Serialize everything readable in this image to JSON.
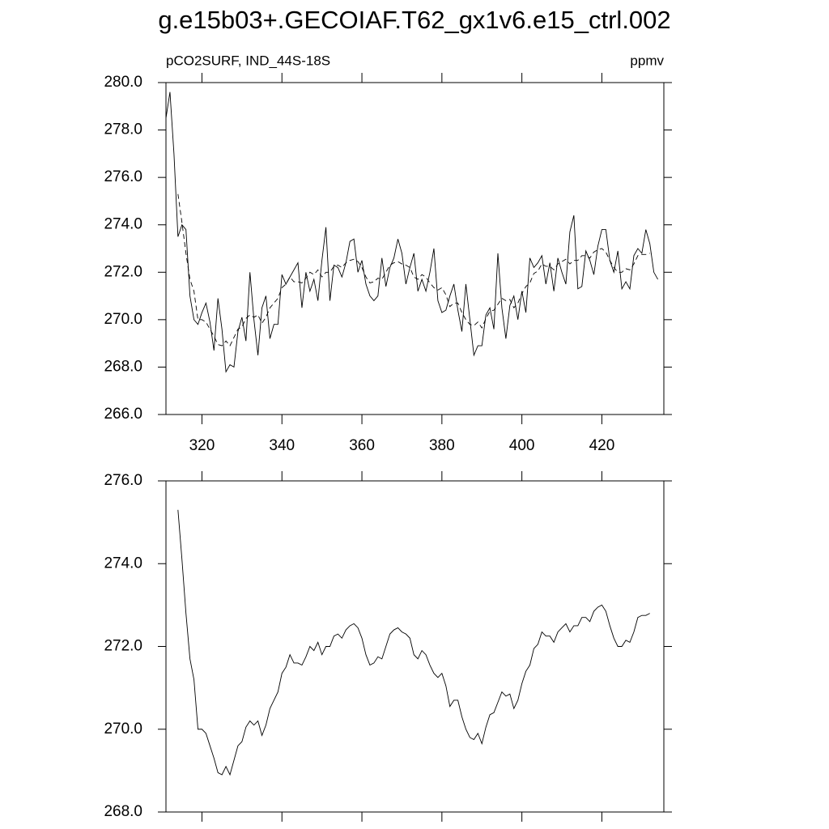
{
  "chart_data": [
    {
      "type": "line",
      "title": "g.e15b03+.GECOIAF.T62_gx1v6.e15_ctrl.002",
      "subtitle_left": "pCO2SURF, IND_44S-18S",
      "subtitle_right": "ppmv",
      "x": [
        311,
        312,
        313,
        314,
        315,
        316,
        317,
        318,
        319,
        320,
        321,
        322,
        323,
        324,
        325,
        326,
        327,
        328,
        329,
        330,
        331,
        332,
        333,
        334,
        335,
        336,
        337,
        338,
        339,
        340,
        341,
        342,
        343,
        344,
        345,
        346,
        347,
        348,
        349,
        350,
        351,
        352,
        353,
        354,
        355,
        356,
        357,
        358,
        359,
        360,
        361,
        362,
        363,
        364,
        365,
        366,
        367,
        368,
        369,
        370,
        371,
        372,
        373,
        374,
        375,
        376,
        377,
        378,
        379,
        380,
        381,
        382,
        383,
        384,
        385,
        386,
        387,
        388,
        389,
        390,
        391,
        392,
        393,
        394,
        395,
        396,
        397,
        398,
        399,
        400,
        401,
        402,
        403,
        404,
        405,
        406,
        407,
        408,
        409,
        410,
        411,
        412,
        413,
        414,
        415,
        416,
        417,
        418,
        419,
        420,
        421,
        422,
        423,
        424,
        425,
        426,
        427,
        428,
        429,
        430,
        431,
        432,
        433,
        434
      ],
      "series": [
        {
          "color": "#000000",
          "dash": false,
          "values": [
            278.5,
            279.6,
            277.0,
            273.5,
            274.0,
            273.8,
            271.0,
            270.0,
            269.8,
            270.3,
            270.7,
            269.9,
            268.7,
            270.9,
            269.6,
            267.8,
            268.1,
            268.0,
            269.5,
            270.1,
            269.1,
            272.0,
            270.0,
            268.5,
            270.5,
            271.0,
            269.2,
            269.8,
            269.8,
            271.9,
            271.5,
            271.8,
            272.1,
            272.4,
            270.5,
            272.0,
            271.2,
            271.7,
            270.8,
            272.5,
            273.9,
            270.8,
            272.3,
            272.2,
            271.8,
            272.4,
            273.3,
            273.4,
            272.0,
            272.5,
            271.5,
            271.0,
            270.8,
            271.0,
            272.6,
            271.4,
            272.2,
            272.6,
            273.4,
            272.8,
            271.5,
            272.2,
            272.8,
            271.2,
            271.7,
            271.2,
            272.0,
            273.0,
            270.8,
            270.3,
            270.4,
            271.0,
            271.5,
            270.4,
            269.5,
            271.5,
            270.0,
            268.5,
            268.9,
            268.9,
            270.2,
            270.5,
            269.6,
            272.8,
            270.5,
            269.2,
            270.6,
            271.0,
            270.0,
            271.2,
            270.3,
            272.6,
            272.2,
            272.4,
            272.7,
            271.5,
            272.4,
            271.2,
            272.6,
            272.0,
            271.5,
            273.7,
            274.4,
            271.3,
            271.4,
            272.9,
            272.5,
            271.9,
            273.1,
            273.8,
            273.8,
            272.5,
            272.0,
            272.9,
            271.3,
            271.6,
            271.3,
            272.7,
            273.0,
            272.8,
            273.8,
            273.2,
            272.0,
            271.7
          ]
        },
        {
          "color": "#000000",
          "dash": true,
          "values": [
            null,
            null,
            null,
            275.3,
            274.1,
            272.8,
            271.7,
            271.2,
            270.0,
            270.0,
            269.9,
            269.6,
            269.3,
            268.95,
            268.9,
            269.1,
            268.9,
            269.25,
            269.6,
            269.7,
            270.05,
            270.2,
            270.1,
            270.2,
            269.85,
            270.1,
            270.5,
            270.7,
            270.9,
            271.35,
            271.5,
            271.8,
            271.6,
            271.6,
            271.55,
            271.75,
            272.0,
            271.9,
            272.1,
            271.8,
            272.0,
            272.0,
            272.25,
            272.3,
            272.2,
            272.4,
            272.5,
            272.55,
            272.45,
            272.2,
            271.8,
            271.55,
            271.6,
            271.75,
            271.7,
            272.0,
            272.3,
            272.4,
            272.45,
            272.35,
            272.3,
            272.2,
            271.8,
            271.7,
            271.9,
            271.8,
            271.55,
            271.35,
            271.25,
            271.35,
            271.05,
            270.55,
            270.7,
            270.7,
            270.3,
            270.0,
            269.8,
            269.75,
            269.9,
            269.65,
            270.05,
            270.35,
            270.4,
            270.65,
            270.9,
            270.8,
            270.85,
            270.5,
            270.7,
            271.1,
            271.4,
            271.55,
            271.95,
            272.05,
            272.35,
            272.25,
            272.25,
            272.1,
            272.35,
            272.45,
            272.55,
            272.35,
            272.5,
            272.5,
            272.7,
            272.7,
            272.6,
            272.85,
            272.95,
            273.0,
            272.85,
            272.5,
            272.2,
            272.0,
            272.0,
            272.15,
            272.1,
            272.35,
            272.7,
            272.75,
            272.75,
            272.8,
            null,
            null
          ]
        }
      ],
      "xlim": [
        311,
        435.5
      ],
      "ylim": [
        266,
        280
      ],
      "xticks": [
        320,
        340,
        360,
        380,
        400,
        420
      ],
      "xtick_labels": true,
      "yticks": [
        {
          "value": 266,
          "label": "266.0"
        },
        {
          "value": 268,
          "label": "268.0"
        },
        {
          "value": 270,
          "label": "270.0"
        },
        {
          "value": 272,
          "label": "272.0"
        },
        {
          "value": 274,
          "label": "274.0"
        },
        {
          "value": 276,
          "label": "276.0"
        },
        {
          "value": 278,
          "label": "278.0"
        },
        {
          "value": 280,
          "label": "280.0"
        }
      ]
    },
    {
      "type": "line",
      "x": [
        311,
        312,
        313,
        314,
        315,
        316,
        317,
        318,
        319,
        320,
        321,
        322,
        323,
        324,
        325,
        326,
        327,
        328,
        329,
        330,
        331,
        332,
        333,
        334,
        335,
        336,
        337,
        338,
        339,
        340,
        341,
        342,
        343,
        344,
        345,
        346,
        347,
        348,
        349,
        350,
        351,
        352,
        353,
        354,
        355,
        356,
        357,
        358,
        359,
        360,
        361,
        362,
        363,
        364,
        365,
        366,
        367,
        368,
        369,
        370,
        371,
        372,
        373,
        374,
        375,
        376,
        377,
        378,
        379,
        380,
        381,
        382,
        383,
        384,
        385,
        386,
        387,
        388,
        389,
        390,
        391,
        392,
        393,
        394,
        395,
        396,
        397,
        398,
        399,
        400,
        401,
        402,
        403,
        404,
        405,
        406,
        407,
        408,
        409,
        410,
        411,
        412,
        413,
        414,
        415,
        416,
        417,
        418,
        419,
        420,
        421,
        422,
        423,
        424,
        425,
        426,
        427,
        428,
        429,
        430,
        431,
        432,
        433,
        434
      ],
      "series": [
        {
          "color": "#000000",
          "dash": false,
          "values": [
            null,
            null,
            null,
            275.3,
            274.1,
            272.8,
            271.7,
            271.2,
            270.0,
            270.0,
            269.9,
            269.6,
            269.3,
            268.95,
            268.9,
            269.1,
            268.9,
            269.25,
            269.6,
            269.7,
            270.05,
            270.2,
            270.1,
            270.2,
            269.85,
            270.1,
            270.5,
            270.7,
            270.9,
            271.35,
            271.5,
            271.8,
            271.6,
            271.6,
            271.55,
            271.75,
            272.0,
            271.9,
            272.1,
            271.8,
            272.0,
            272.0,
            272.25,
            272.3,
            272.2,
            272.4,
            272.5,
            272.55,
            272.45,
            272.2,
            271.8,
            271.55,
            271.6,
            271.75,
            271.7,
            272.0,
            272.3,
            272.4,
            272.45,
            272.35,
            272.3,
            272.2,
            271.8,
            271.7,
            271.9,
            271.8,
            271.55,
            271.35,
            271.25,
            271.35,
            271.05,
            270.55,
            270.7,
            270.7,
            270.3,
            270.0,
            269.8,
            269.75,
            269.9,
            269.65,
            270.05,
            270.35,
            270.4,
            270.65,
            270.9,
            270.8,
            270.85,
            270.5,
            270.7,
            271.1,
            271.4,
            271.55,
            271.95,
            272.05,
            272.35,
            272.25,
            272.25,
            272.1,
            272.35,
            272.45,
            272.55,
            272.35,
            272.5,
            272.5,
            272.7,
            272.7,
            272.6,
            272.85,
            272.95,
            273.0,
            272.85,
            272.5,
            272.2,
            272.0,
            272.0,
            272.15,
            272.1,
            272.35,
            272.7,
            272.75,
            272.75,
            272.8,
            null,
            null
          ]
        }
      ],
      "xlim": [
        311,
        435.5
      ],
      "ylim": [
        268,
        276
      ],
      "xticks": [
        320,
        340,
        360,
        380,
        400,
        420
      ],
      "xtick_labels": false,
      "yticks": [
        {
          "value": 268,
          "label": "268.0"
        },
        {
          "value": 270,
          "label": "270.0"
        },
        {
          "value": 272,
          "label": "272.0"
        },
        {
          "value": 274,
          "label": "274.0"
        },
        {
          "value": 276,
          "label": "276.0"
        }
      ]
    }
  ]
}
